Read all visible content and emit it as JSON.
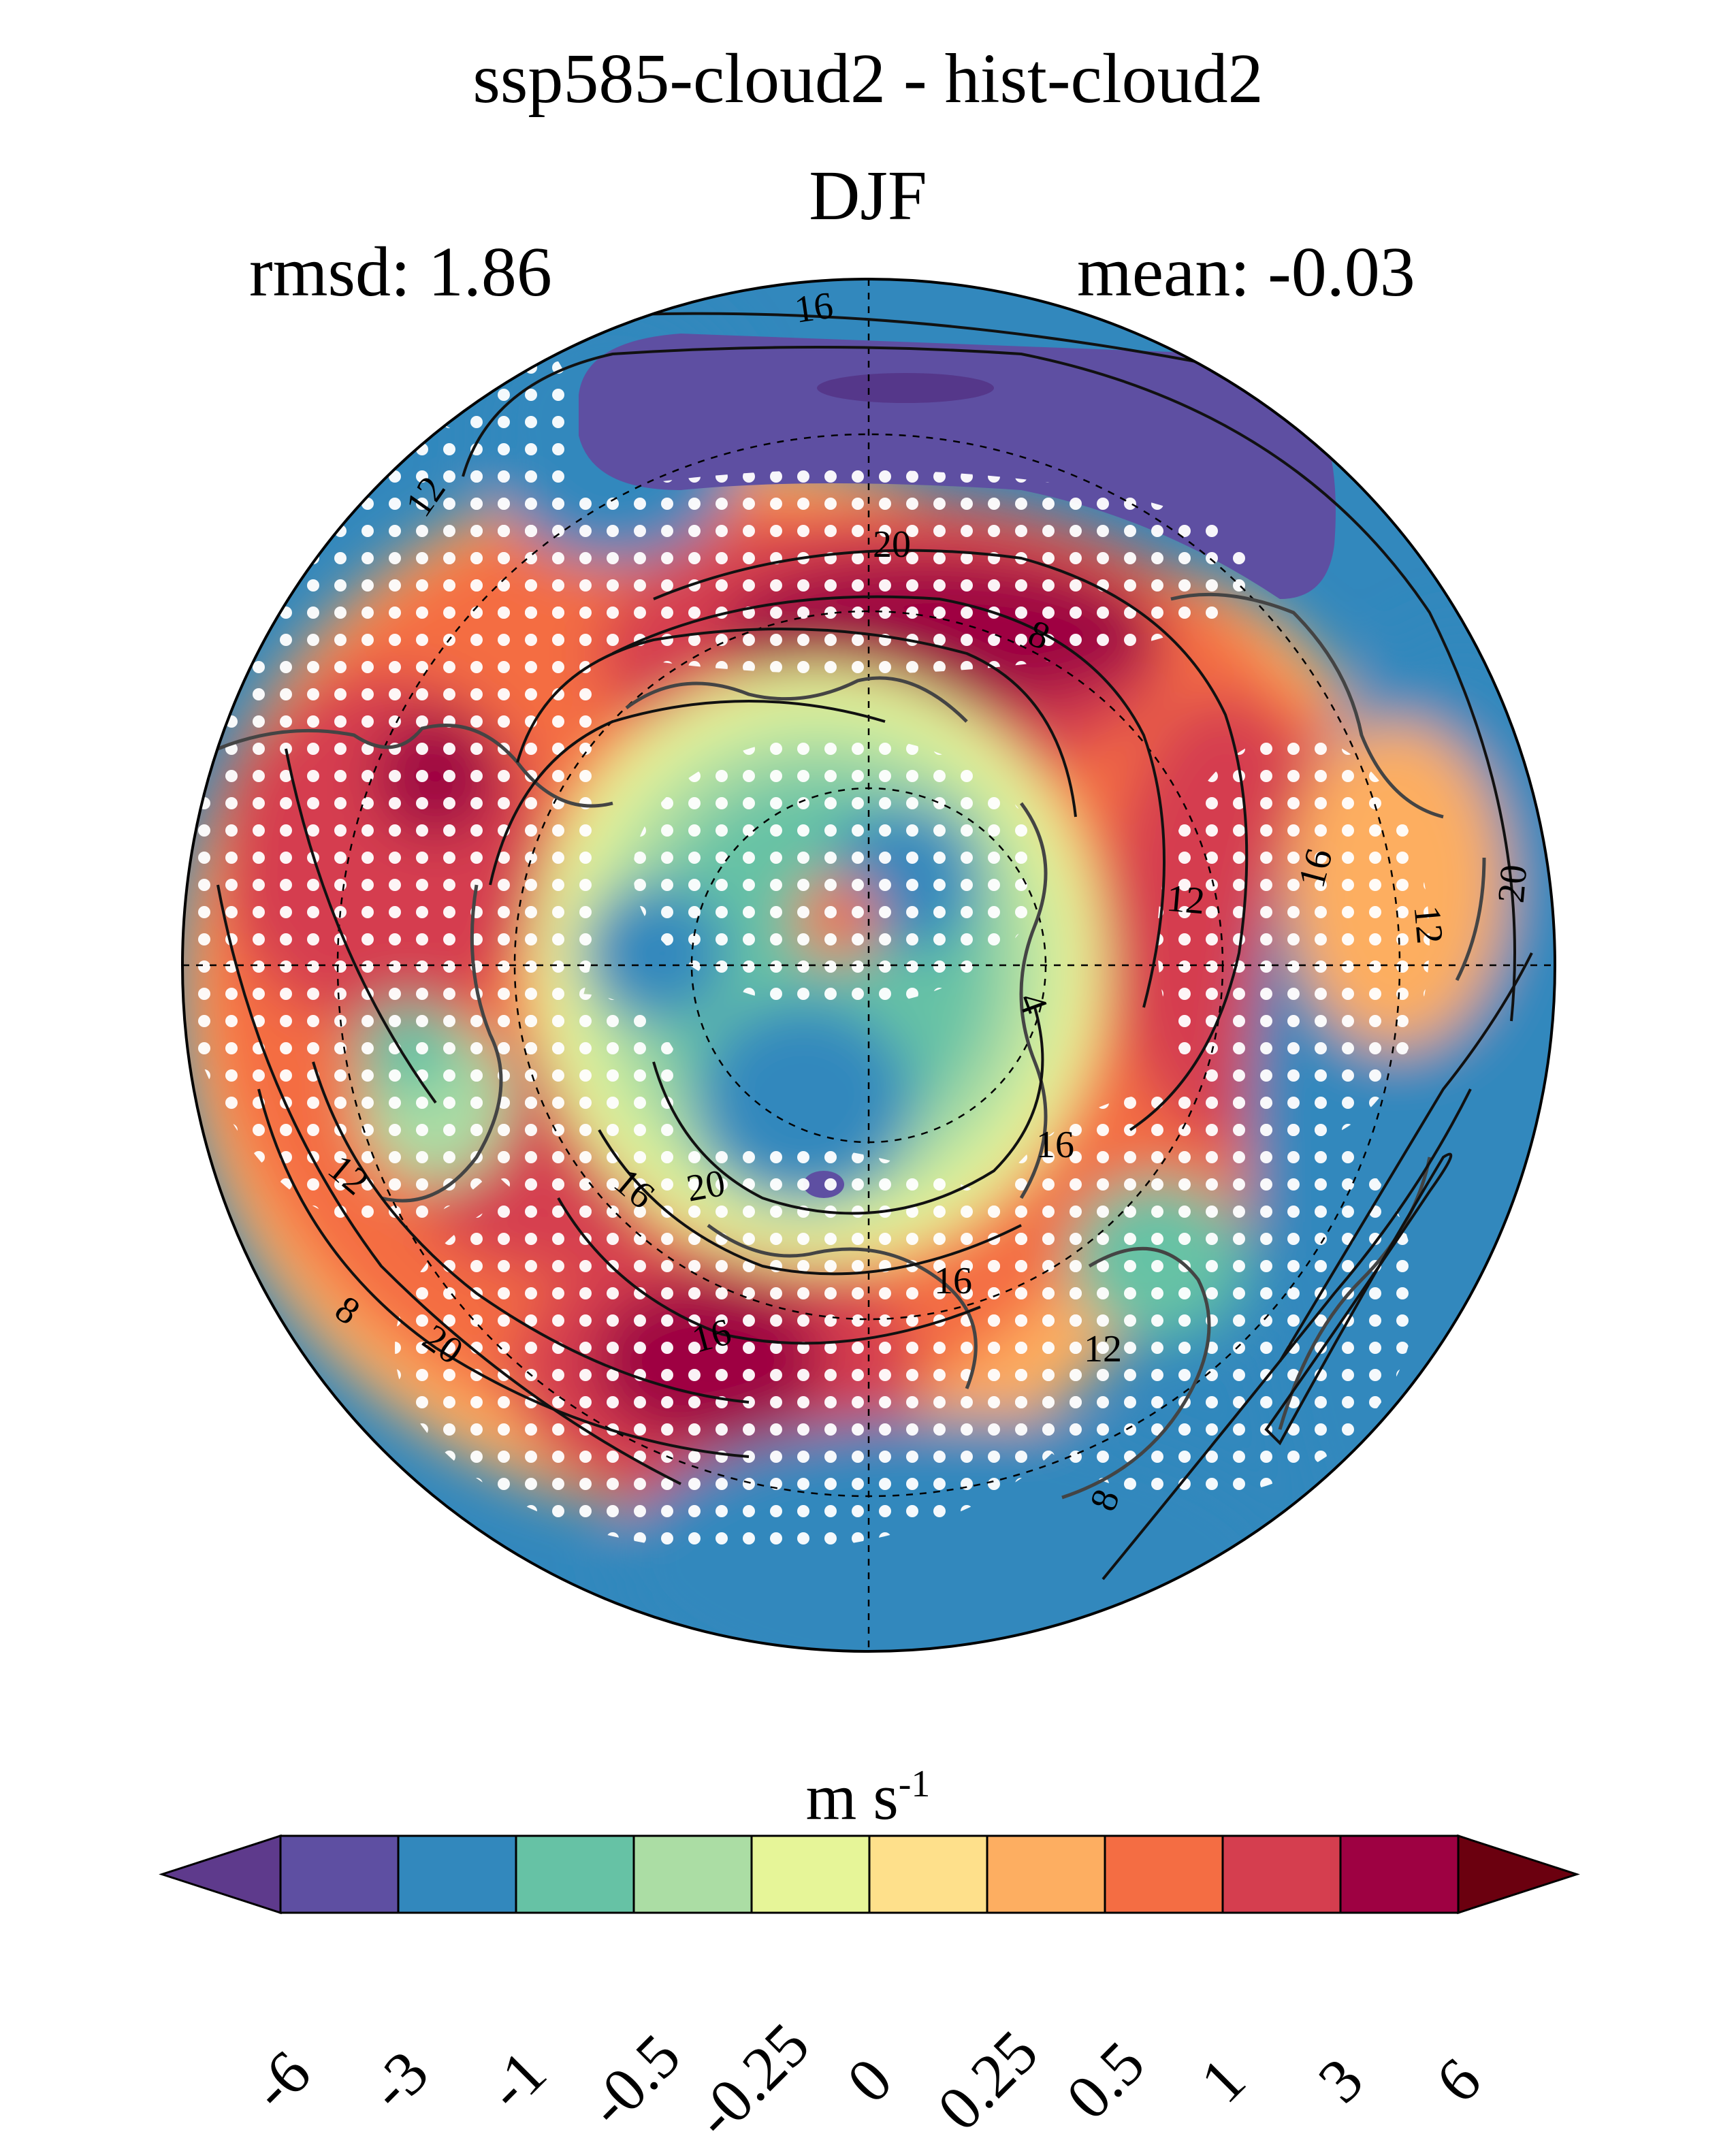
{
  "title": "ssp585-cloud2 - hist-cloud2",
  "season": "DJF",
  "stats": {
    "rmsd_label": "rmsd:",
    "rmsd_value": "1.86",
    "mean_label": "mean:",
    "mean_value": "-0.03"
  },
  "map": {
    "projection": "north polar stereographic",
    "contour_labels": [
      "16",
      "12",
      "20",
      "8",
      "16",
      "12",
      "20",
      "4",
      "12",
      "16",
      "16",
      "20",
      "12",
      "8",
      "20",
      "8",
      "12",
      "16",
      "16"
    ],
    "stippling": "white dots mark significant change"
  },
  "colorbar": {
    "units_base": "m s",
    "units_exp": "-1",
    "tick_labels": [
      "-6",
      "-3",
      "-1",
      "-0.5",
      "-0.25",
      "0",
      "0.25",
      "0.5",
      "1",
      "3",
      "6"
    ],
    "colors": {
      "below_min": "#5e3a8c",
      "bins": [
        "#5e4fa2",
        "#3288bd",
        "#66c2a5",
        "#abdda4",
        "#e6f598",
        "#fee08b",
        "#fdae61",
        "#f46d43",
        "#d53e4f",
        "#9e0142"
      ],
      "above_max": "#6b000f"
    }
  }
}
